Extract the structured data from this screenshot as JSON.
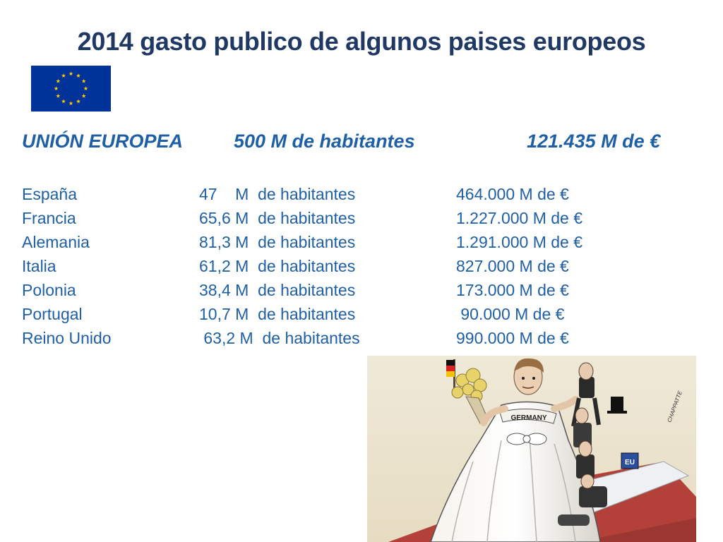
{
  "title": "2014 gasto publico de algunos paises europeos",
  "eu_row": {
    "name": "UNIÓN EUROPEA",
    "population": "500 M de habitantes",
    "spending": "121.435 M de €"
  },
  "countries": [
    {
      "name": "España",
      "population": "47    M  de habitantes",
      "spending": "464.000 M de €"
    },
    {
      "name": "Francia",
      "population": "65,6 M  de habitantes",
      "spending": "1.227.000 M de €"
    },
    {
      "name": "Alemania",
      "population": "81,3 M  de habitantes",
      "spending": "1.291.000 M de €"
    },
    {
      "name": "Italia",
      "population": "61,2 M  de habitantes",
      "spending": "827.000 M de €"
    },
    {
      "name": "Polonia",
      "population": "38,4 M  de habitantes",
      "spending": "173.000 M de €"
    },
    {
      "name": "Portugal",
      "population": "10,7 M  de habitantes",
      "spending": " 90.000 M de €"
    },
    {
      "name": "Reino Unido",
      "population": " 63,2 M  de habitantes",
      "spending": "990.000 M de €"
    }
  ],
  "cartoon": {
    "banner_text": "GERMANY",
    "sign_text": "EU",
    "signature": "CHAPPATTE"
  },
  "colors": {
    "title": "#1f3864",
    "text": "#1f5fa6",
    "flag_blue": "#003399",
    "flag_gold": "#ffcc00"
  }
}
